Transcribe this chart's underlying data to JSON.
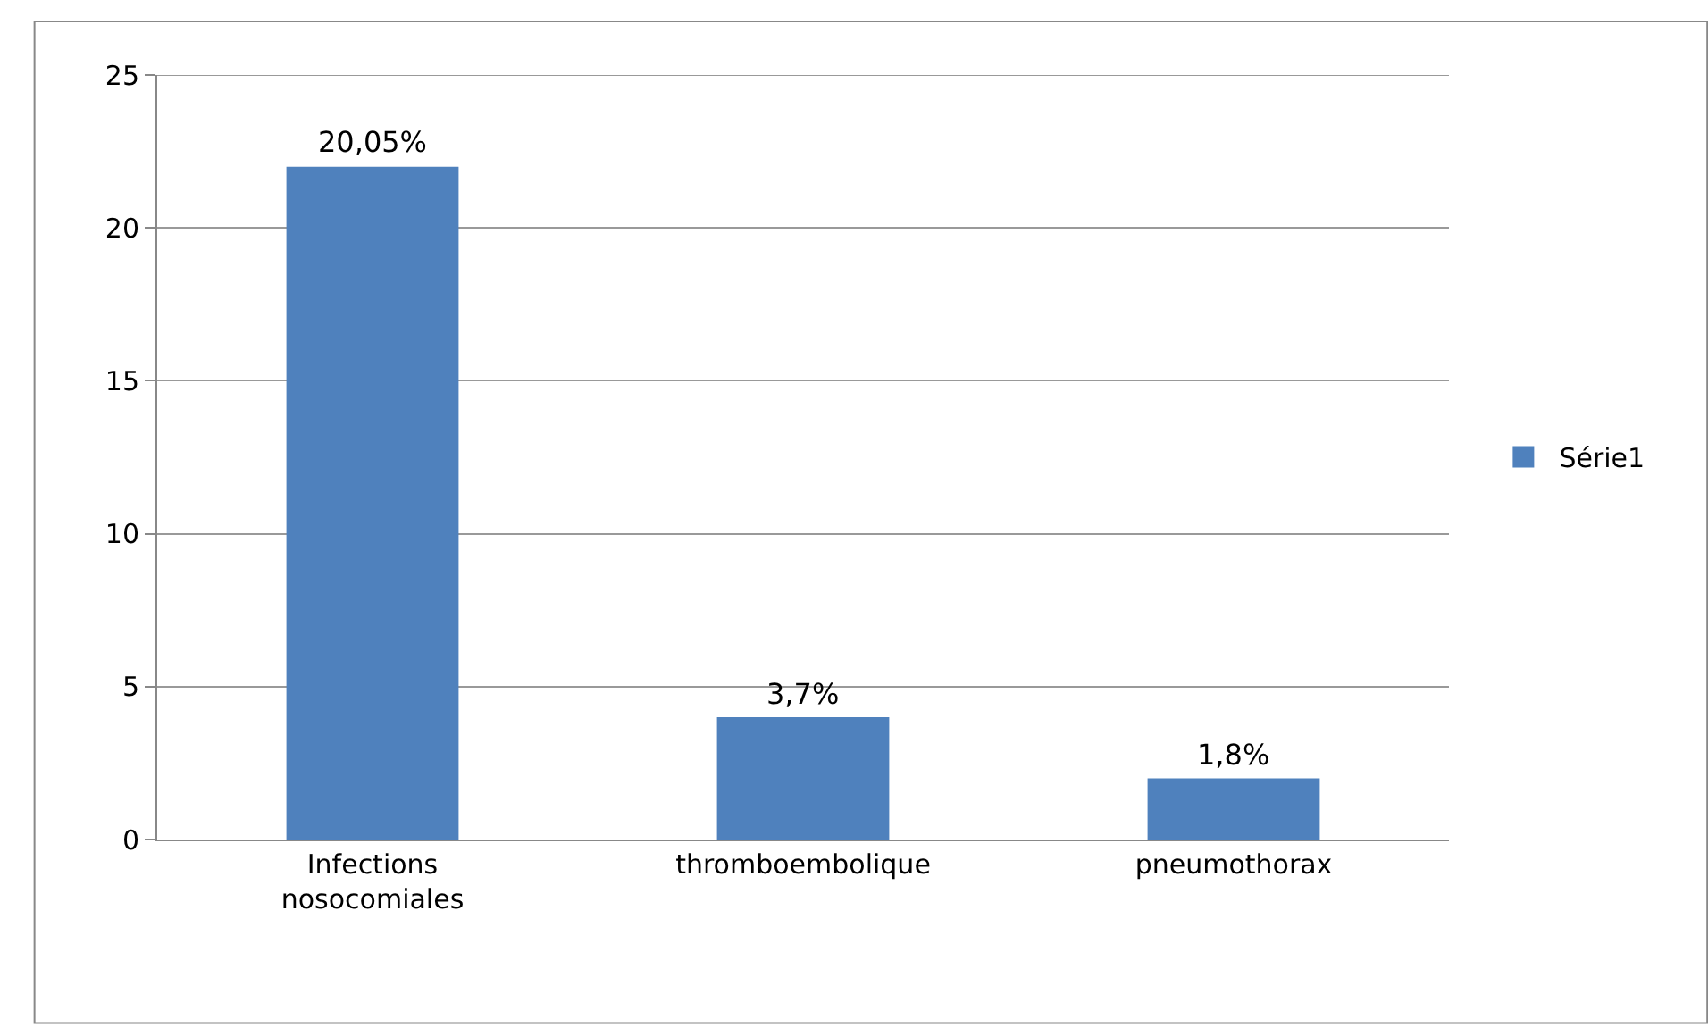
{
  "chart_data": {
    "type": "bar",
    "categories": [
      "Infections nosocomiales",
      "thromboembolique",
      "pneumothorax"
    ],
    "series": [
      {
        "name": "Série1",
        "color": "#4f81bd",
        "values": [
          22,
          4,
          2
        ]
      }
    ],
    "annotations": [
      {
        "text": "20,05%",
        "x": "Infections nosocomiales",
        "y": 22
      },
      {
        "text": "3,7%",
        "x": "thromboembolique",
        "y": 4
      },
      {
        "text": "1,8%",
        "x": "pneumothorax",
        "y": 2
      }
    ],
    "ylim": [
      0,
      25
    ],
    "yticks": [
      0,
      5,
      10,
      15,
      20,
      25
    ],
    "grid": "y",
    "legend": "right"
  }
}
